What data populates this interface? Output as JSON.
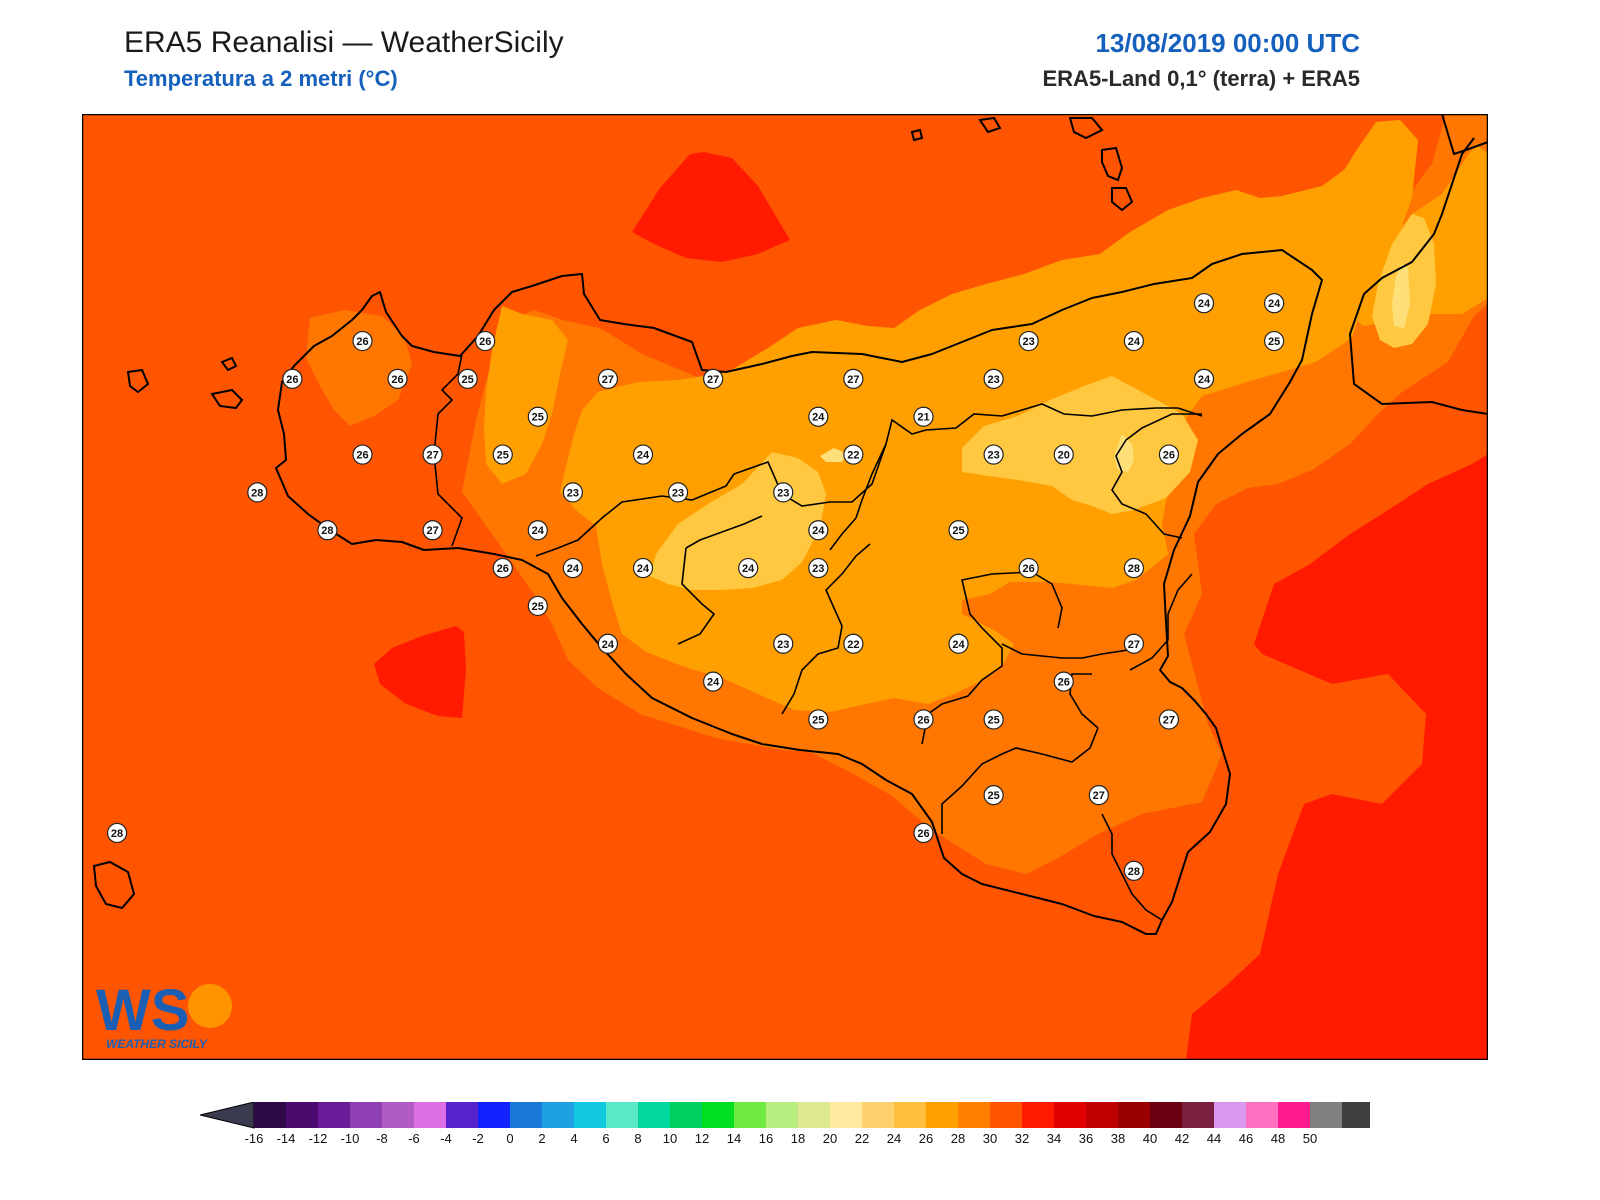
{
  "header": {
    "title": "ERA5 Reanalisi — WeatherSicily",
    "subtitle": "Temperatura a 2 metri (°C)",
    "datetime": "13/08/2019 00:00 UTC",
    "source": "ERA5-Land 0,1° (terra) + ERA5"
  },
  "logo": {
    "letters": "WS",
    "text": "WEATHER SICILY"
  },
  "colors": {
    "t28": "#ff5500",
    "t26": "#ff7700",
    "t24": "#ffa000",
    "t22": "#ffc840",
    "t20": "#ffdf7a",
    "t30": "#ff1a00",
    "coast": "#000000"
  },
  "stations": [
    {
      "v": "26",
      "lon": 12.76,
      "lat": 38.13
    },
    {
      "v": "26",
      "lon": 13.11,
      "lat": 38.13
    },
    {
      "v": "26",
      "lon": 12.56,
      "lat": 38.03
    },
    {
      "v": "26",
      "lon": 12.86,
      "lat": 38.03
    },
    {
      "v": "25",
      "lon": 13.06,
      "lat": 38.03
    },
    {
      "v": "27",
      "lon": 13.46,
      "lat": 38.03
    },
    {
      "v": "27",
      "lon": 13.76,
      "lat": 38.03
    },
    {
      "v": "27",
      "lon": 14.16,
      "lat": 38.03
    },
    {
      "v": "23",
      "lon": 14.66,
      "lat": 38.13
    },
    {
      "v": "24",
      "lon": 14.96,
      "lat": 38.13
    },
    {
      "v": "24",
      "lon": 15.16,
      "lat": 38.23
    },
    {
      "v": "24",
      "lon": 15.36,
      "lat": 38.23
    },
    {
      "v": "25",
      "lon": 15.36,
      "lat": 38.13
    },
    {
      "v": "23",
      "lon": 14.56,
      "lat": 38.03
    },
    {
      "v": "24",
      "lon": 15.16,
      "lat": 38.03
    },
    {
      "v": "25",
      "lon": 13.26,
      "lat": 37.93
    },
    {
      "v": "24",
      "lon": 14.06,
      "lat": 37.93
    },
    {
      "v": "21",
      "lon": 14.36,
      "lat": 37.93
    },
    {
      "v": "26",
      "lon": 12.76,
      "lat": 37.83
    },
    {
      "v": "27",
      "lon": 12.96,
      "lat": 37.83
    },
    {
      "v": "25",
      "lon": 13.16,
      "lat": 37.83
    },
    {
      "v": "24",
      "lon": 13.56,
      "lat": 37.83
    },
    {
      "v": "22",
      "lon": 14.16,
      "lat": 37.83
    },
    {
      "v": "23",
      "lon": 14.56,
      "lat": 37.83
    },
    {
      "v": "20",
      "lon": 14.76,
      "lat": 37.83
    },
    {
      "v": "26",
      "lon": 15.06,
      "lat": 37.83
    },
    {
      "v": "28",
      "lon": 12.46,
      "lat": 37.73
    },
    {
      "v": "23",
      "lon": 13.36,
      "lat": 37.73
    },
    {
      "v": "23",
      "lon": 13.66,
      "lat": 37.73
    },
    {
      "v": "23",
      "lon": 13.96,
      "lat": 37.73
    },
    {
      "v": "28",
      "lon": 12.66,
      "lat": 37.63
    },
    {
      "v": "27",
      "lon": 12.96,
      "lat": 37.63
    },
    {
      "v": "24",
      "lon": 13.26,
      "lat": 37.63
    },
    {
      "v": "24",
      "lon": 14.06,
      "lat": 37.63
    },
    {
      "v": "25",
      "lon": 14.46,
      "lat": 37.63
    },
    {
      "v": "26",
      "lon": 13.16,
      "lat": 37.53
    },
    {
      "v": "24",
      "lon": 13.36,
      "lat": 37.53
    },
    {
      "v": "24",
      "lon": 13.56,
      "lat": 37.53
    },
    {
      "v": "24",
      "lon": 13.86,
      "lat": 37.53
    },
    {
      "v": "23",
      "lon": 14.06,
      "lat": 37.53
    },
    {
      "v": "26",
      "lon": 14.66,
      "lat": 37.53
    },
    {
      "v": "28",
      "lon": 14.96,
      "lat": 37.53
    },
    {
      "v": "25",
      "lon": 13.26,
      "lat": 37.43
    },
    {
      "v": "24",
      "lon": 13.46,
      "lat": 37.33
    },
    {
      "v": "23",
      "lon": 13.96,
      "lat": 37.33
    },
    {
      "v": "22",
      "lon": 14.16,
      "lat": 37.33
    },
    {
      "v": "24",
      "lon": 14.46,
      "lat": 37.33
    },
    {
      "v": "27",
      "lon": 14.96,
      "lat": 37.33
    },
    {
      "v": "24",
      "lon": 13.76,
      "lat": 37.23
    },
    {
      "v": "26",
      "lon": 14.76,
      "lat": 37.23
    },
    {
      "v": "25",
      "lon": 14.06,
      "lat": 37.13
    },
    {
      "v": "26",
      "lon": 14.36,
      "lat": 37.13
    },
    {
      "v": "25",
      "lon": 14.56,
      "lat": 37.13
    },
    {
      "v": "27",
      "lon": 15.06,
      "lat": 37.13
    },
    {
      "v": "25",
      "lon": 14.56,
      "lat": 36.93
    },
    {
      "v": "27",
      "lon": 14.86,
      "lat": 36.93
    },
    {
      "v": "26",
      "lon": 14.36,
      "lat": 36.83
    },
    {
      "v": "28",
      "lon": 14.96,
      "lat": 36.73
    },
    {
      "v": "28",
      "lon": 12.06,
      "lat": 36.83
    }
  ],
  "colorbar": {
    "labels": [
      "-16",
      "-14",
      "-12",
      "-10",
      "-8",
      "-6",
      "-4",
      "-2",
      "0",
      "2",
      "4",
      "6",
      "8",
      "10",
      "12",
      "14",
      "16",
      "18",
      "20",
      "22",
      "24",
      "26",
      "28",
      "30",
      "32",
      "34",
      "36",
      "38",
      "40",
      "42",
      "44",
      "46",
      "48",
      "50"
    ],
    "under_color": "#3b3b4f",
    "over_color": "#000000",
    "colors": [
      "#2d0a45",
      "#4a0a6e",
      "#6a1b9a",
      "#8e3fb2",
      "#b05cc4",
      "#dc6fe4",
      "#5522cc",
      "#1122ff",
      "#1a78d6",
      "#1fa0e0",
      "#12c8e0",
      "#5ae8c8",
      "#00d8a0",
      "#00d060",
      "#00e020",
      "#70ea40",
      "#b8ee80",
      "#dde890",
      "#ffe8a0",
      "#ffd070",
      "#ffc040",
      "#ffa000",
      "#ff7f00",
      "#ff5500",
      "#ff1a00",
      "#e00000",
      "#c00000",
      "#9a0000",
      "#6a0010",
      "#7a2040",
      "#d898f0",
      "#ff70c0",
      "#ff1a90",
      "#808080",
      "#404040"
    ]
  }
}
